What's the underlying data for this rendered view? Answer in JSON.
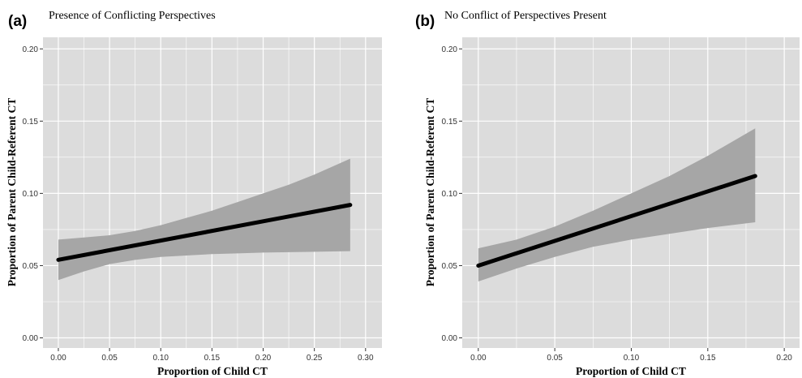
{
  "chart_data": [
    {
      "type": "line",
      "panel_label": "(a)",
      "title": "Presence of Conflicting Perspectives",
      "xlabel": "Proportion of Child CT",
      "ylabel": "Proportion of Parent Child-Referent CT",
      "xlim": [
        -0.015,
        0.316
      ],
      "ylim": [
        -0.007,
        0.208
      ],
      "x_ticks": [
        0.0,
        0.05,
        0.1,
        0.15,
        0.2,
        0.25,
        0.3
      ],
      "x_tick_labels": [
        "0.00",
        "0.05",
        "0.10",
        "0.15",
        "0.20",
        "0.25",
        "0.30"
      ],
      "y_ticks": [
        0.0,
        0.05,
        0.1,
        0.15,
        0.2
      ],
      "y_tick_labels": [
        "0.00",
        "0.05",
        "0.10",
        "0.15",
        "0.20"
      ],
      "grid": true,
      "fit_line": {
        "x": [
          0.0,
          0.285
        ],
        "y": [
          0.054,
          0.092
        ]
      },
      "confidence_band": {
        "x": [
          0.0,
          0.025,
          0.05,
          0.075,
          0.1,
          0.125,
          0.15,
          0.175,
          0.2,
          0.225,
          0.25,
          0.285
        ],
        "lower": [
          0.04,
          0.046,
          0.051,
          0.054,
          0.056,
          0.057,
          0.058,
          0.0585,
          0.059,
          0.0593,
          0.0596,
          0.06
        ],
        "upper": [
          0.068,
          0.0695,
          0.071,
          0.074,
          0.078,
          0.083,
          0.088,
          0.094,
          0.1,
          0.106,
          0.113,
          0.124
        ]
      }
    },
    {
      "type": "line",
      "panel_label": "(b)",
      "title": "No Conflict of Perspectives Present",
      "xlabel": "Proportion of Child CT",
      "ylabel": "Proportion of Parent Child-Referent CT",
      "xlim": [
        -0.0105,
        0.21
      ],
      "ylim": [
        -0.007,
        0.208
      ],
      "x_ticks": [
        0.0,
        0.05,
        0.1,
        0.15,
        0.2
      ],
      "x_tick_labels": [
        "0.00",
        "0.05",
        "0.10",
        "0.15",
        "0.20"
      ],
      "y_ticks": [
        0.0,
        0.05,
        0.1,
        0.15,
        0.2
      ],
      "y_tick_labels": [
        "0.00",
        "0.05",
        "0.10",
        "0.15",
        "0.20"
      ],
      "grid": true,
      "fit_line": {
        "x": [
          0.0,
          0.181
        ],
        "y": [
          0.05,
          0.112
        ]
      },
      "confidence_band": {
        "x": [
          0.0,
          0.025,
          0.05,
          0.075,
          0.1,
          0.125,
          0.15,
          0.181
        ],
        "lower": [
          0.039,
          0.048,
          0.056,
          0.063,
          0.068,
          0.072,
          0.076,
          0.08
        ],
        "upper": [
          0.062,
          0.068,
          0.077,
          0.088,
          0.1,
          0.112,
          0.126,
          0.145
        ]
      }
    }
  ],
  "colors": {
    "panel_background": "#dcdcdc",
    "grid": "#ffffff",
    "band": "#a6a6a6",
    "line": "#000000"
  }
}
